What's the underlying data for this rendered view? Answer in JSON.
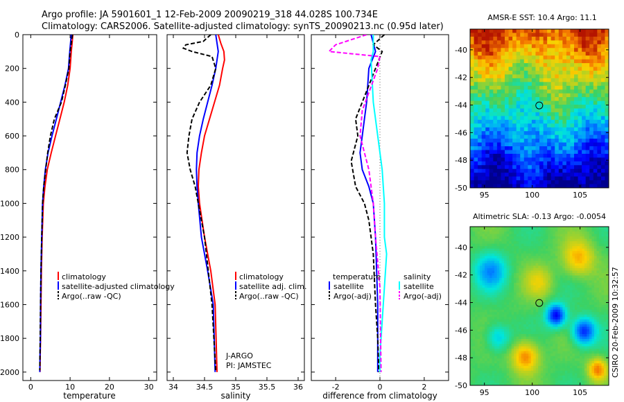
{
  "header": {
    "title_line1": "Argo profile: JA 5901601_1 12-Feb-2009 20090219_318 44.028S 100.734E",
    "title_line2": "Climatology: CARS2006. Satellite-adjusted climatology: synTS_20090213.nc (0.95d later)"
  },
  "footer": {
    "credit": "CSIRO 20-Feb-2009 10:32:57"
  },
  "colors": {
    "red": "#ff0000",
    "blue": "#0000ff",
    "black": "#000000",
    "cyan": "#00ffff",
    "magenta": "#ff00ff",
    "dotted": "#666666"
  },
  "chart_data": [
    {
      "type": "line",
      "xlabel": "temperature",
      "ylim": [
        2050,
        0
      ],
      "xlim": [
        -2,
        32
      ],
      "xticks": [
        0,
        10,
        20,
        30
      ],
      "yticks": [
        0,
        200,
        400,
        600,
        800,
        1000,
        1200,
        1400,
        1600,
        1800,
        2000
      ],
      "legend": {
        "position": "lower-middle",
        "entries": [
          "climatology",
          "satellite-adjusted climatology",
          "Argo(..raw -QC)"
        ]
      },
      "series": [
        {
          "name": "climatology",
          "color": "#ff0000",
          "dash": "",
          "x": [
            10.7,
            10.5,
            10.3,
            10.0,
            9.4,
            8.5,
            7.4,
            6.3,
            5.2,
            4.2,
            3.6,
            3.2,
            2.9,
            2.7,
            2.6,
            2.5,
            2.4,
            2.35
          ],
          "y": [
            0,
            50,
            100,
            200,
            300,
            400,
            500,
            600,
            700,
            800,
            900,
            1000,
            1200,
            1400,
            1600,
            1800,
            1900,
            2000
          ]
        },
        {
          "name": "satellite-adjusted climatology",
          "color": "#0000ff",
          "dash": "",
          "x": [
            10.3,
            10.1,
            9.9,
            9.6,
            8.7,
            7.6,
            6.5,
            5.4,
            4.4,
            3.7,
            3.3,
            3.0,
            2.8,
            2.6,
            2.5,
            2.45,
            2.35,
            2.3
          ],
          "y": [
            0,
            50,
            100,
            200,
            300,
            400,
            500,
            600,
            700,
            800,
            900,
            1000,
            1200,
            1400,
            1600,
            1800,
            1900,
            2000
          ]
        },
        {
          "name": "Argo(..raw -QC)",
          "color": "#000000",
          "dash": "6,3",
          "x": [
            10.6,
            10.3,
            10.0,
            9.7,
            8.8,
            7.8,
            6.0,
            5.0,
            4.3,
            3.8,
            3.3,
            3.0,
            2.8,
            2.6,
            2.5,
            2.4,
            2.3
          ],
          "y": [
            0,
            50,
            100,
            200,
            300,
            400,
            500,
            600,
            700,
            800,
            900,
            1000,
            1200,
            1400,
            1600,
            1800,
            1990
          ]
        }
      ]
    },
    {
      "type": "line",
      "xlabel": "salinity",
      "ylim": [
        2050,
        0
      ],
      "xlim": [
        33.9,
        36.1
      ],
      "xticks": [
        34,
        34.5,
        35,
        35.5,
        36
      ],
      "legend": {
        "position": "lower-middle",
        "entries": [
          "climatology",
          "satellite adj. clim.",
          "Argo(..raw -QC)"
        ]
      },
      "annotations": [
        "J-ARGO",
        "PI: JAMSTEC"
      ],
      "series": [
        {
          "name": "climatology",
          "color": "#ff0000",
          "dash": "",
          "x": [
            34.72,
            34.76,
            34.81,
            34.82,
            34.79,
            34.74,
            34.66,
            34.58,
            34.5,
            34.45,
            34.41,
            34.4,
            34.42,
            34.5,
            34.6,
            34.67,
            34.7
          ],
          "y": [
            0,
            50,
            100,
            150,
            200,
            300,
            400,
            500,
            600,
            700,
            800,
            900,
            1000,
            1200,
            1400,
            1600,
            2000
          ]
        },
        {
          "name": "satellite adj. clim.",
          "color": "#0000ff",
          "dash": "",
          "x": [
            34.68,
            34.7,
            34.72,
            34.7,
            34.68,
            34.62,
            34.55,
            34.48,
            34.42,
            34.38,
            34.37,
            34.38,
            34.4,
            34.45,
            34.55,
            34.64,
            34.67
          ],
          "y": [
            0,
            50,
            100,
            150,
            200,
            300,
            400,
            500,
            600,
            700,
            800,
            900,
            1000,
            1200,
            1400,
            1600,
            2000
          ]
        },
        {
          "name": "Argo(..raw -QC)",
          "color": "#000000",
          "dash": "6,3",
          "x": [
            34.6,
            34.48,
            34.2,
            34.16,
            34.3,
            34.62,
            34.68,
            34.6,
            34.42,
            34.3,
            34.25,
            34.22,
            34.27,
            34.35,
            34.5,
            34.62,
            34.68
          ],
          "y": [
            0,
            40,
            60,
            80,
            100,
            130,
            200,
            300,
            400,
            500,
            600,
            700,
            800,
            900,
            1200,
            1600,
            2000
          ]
        }
      ]
    },
    {
      "type": "line",
      "xlabel": "difference from climatology",
      "ylim": [
        2050,
        0
      ],
      "xlim": [
        -3.1,
        3.1
      ],
      "xticks": [
        -2,
        0,
        2
      ],
      "legend": {
        "position": "lower-middle",
        "entries": [
          "temperature",
          "satellite",
          "Argo(-adj)",
          "salinity",
          "satellite",
          "Argo(-adj)"
        ]
      },
      "series": [
        {
          "name": "temperature satellite",
          "color": "#0000ff",
          "dash": "",
          "x": [
            -0.4,
            -0.2,
            -0.5,
            -0.6,
            -0.7,
            -0.8,
            -0.9,
            -0.8,
            -0.5,
            -0.3,
            -0.2,
            -0.15,
            -0.1,
            -0.1,
            -0.1
          ],
          "y": [
            0,
            100,
            200,
            400,
            500,
            600,
            700,
            800,
            900,
            1000,
            1200,
            1400,
            1600,
            1800,
            2000
          ]
        },
        {
          "name": "temperature Argo(-adj)",
          "color": "#000000",
          "dash": "6,3",
          "x": [
            0.2,
            -0.3,
            0.1,
            -0.8,
            -1.1,
            -1.0,
            -1.3,
            -1.1,
            -0.7,
            -0.5,
            -0.3,
            -0.2,
            -0.1,
            -0.05
          ],
          "y": [
            0,
            60,
            100,
            400,
            500,
            600,
            750,
            900,
            1000,
            1100,
            1300,
            1600,
            1800,
            2000
          ]
        },
        {
          "name": "salinity satellite",
          "color": "#00ffff",
          "dash": "",
          "x": [
            -0.3,
            -0.3,
            -0.4,
            -0.3,
            -0.1,
            0.1,
            0.2,
            0.2,
            0.3,
            0.2,
            0.1,
            0.0,
            0.0
          ],
          "y": [
            0,
            100,
            150,
            400,
            600,
            800,
            1000,
            1200,
            1300,
            1500,
            1700,
            1900,
            2000
          ]
        },
        {
          "name": "salinity Argo(-adj)",
          "color": "#ff00ff",
          "dash": "6,3",
          "x": [
            -0.6,
            -2.0,
            -2.3,
            0.0,
            -0.1,
            -0.8,
            -0.9,
            -0.5,
            -0.3,
            -0.2,
            0.0,
            0.05
          ],
          "y": [
            0,
            60,
            100,
            130,
            200,
            450,
            600,
            800,
            1000,
            1200,
            1500,
            2000
          ]
        }
      ]
    },
    {
      "type": "heatmap",
      "title": "AMSR-E SST: 10.4 Argo: 11.1",
      "xlim": [
        93.5,
        108
      ],
      "ylim": [
        -50,
        -38.5
      ],
      "xticks": [
        95,
        100,
        105
      ],
      "yticks": [
        -40,
        -42,
        -44,
        -46,
        -48,
        -50
      ],
      "marker": {
        "lon": 100.734,
        "lat": -44.028
      }
    },
    {
      "type": "heatmap",
      "title": "Altimetric SLA: -0.13 Argo: -0.0054",
      "xlim": [
        93.5,
        108
      ],
      "ylim": [
        -50,
        -38.5
      ],
      "xticks": [
        95,
        100,
        105
      ],
      "yticks": [
        -40,
        -42,
        -44,
        -46,
        -48,
        -50
      ],
      "marker": {
        "lon": 100.734,
        "lat": -44.028
      }
    }
  ]
}
